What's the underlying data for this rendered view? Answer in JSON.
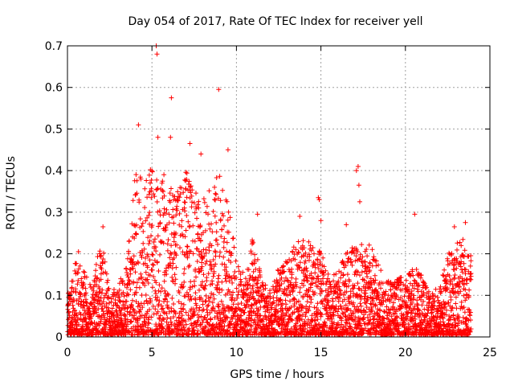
{
  "chart_data": {
    "type": "scatter",
    "title": "Day 054 of 2017, Rate Of TEC Index for receiver yell",
    "xlabel": "GPS time / hours",
    "ylabel": "ROTI / TECUs",
    "xlim": [
      0,
      25
    ],
    "ylim": [
      0,
      0.7
    ],
    "xticks": [
      0,
      5,
      10,
      15,
      20,
      25
    ],
    "xtick_labels": [
      "0",
      "5",
      "10",
      "15",
      "20",
      "25"
    ],
    "yticks": [
      0,
      0.1,
      0.2,
      0.3,
      0.4,
      0.5,
      0.6,
      0.7
    ],
    "ytick_labels": [
      "0",
      "0.1",
      "0.2",
      "0.3",
      "0.4",
      "0.5",
      "0.6",
      "0.7"
    ],
    "grid": true,
    "marker": "+",
    "color": "#ff0000",
    "outliers": [
      {
        "x": 5.25,
        "y": 0.7
      },
      {
        "x": 5.3,
        "y": 0.68
      },
      {
        "x": 6.15,
        "y": 0.575
      },
      {
        "x": 8.95,
        "y": 0.595
      },
      {
        "x": 4.2,
        "y": 0.51
      },
      {
        "x": 5.35,
        "y": 0.48
      },
      {
        "x": 6.1,
        "y": 0.48
      },
      {
        "x": 7.25,
        "y": 0.465
      },
      {
        "x": 9.5,
        "y": 0.45
      },
      {
        "x": 7.9,
        "y": 0.44
      },
      {
        "x": 17.2,
        "y": 0.41
      },
      {
        "x": 17.25,
        "y": 0.365
      },
      {
        "x": 17.3,
        "y": 0.325
      },
      {
        "x": 14.85,
        "y": 0.335
      },
      {
        "x": 14.9,
        "y": 0.33
      },
      {
        "x": 15.0,
        "y": 0.28
      },
      {
        "x": 16.5,
        "y": 0.27
      },
      {
        "x": 13.75,
        "y": 0.29
      },
      {
        "x": 20.55,
        "y": 0.295
      },
      {
        "x": 23.55,
        "y": 0.275
      },
      {
        "x": 22.9,
        "y": 0.265
      },
      {
        "x": 11.25,
        "y": 0.295
      },
      {
        "x": 2.1,
        "y": 0.265
      },
      {
        "x": 0.65,
        "y": 0.205
      },
      {
        "x": 17.1,
        "y": 0.4
      }
    ],
    "envelope": [
      {
        "x": 0.0,
        "y": 0.1
      },
      {
        "x": 0.5,
        "y": 0.18
      },
      {
        "x": 1.0,
        "y": 0.16
      },
      {
        "x": 1.5,
        "y": 0.12
      },
      {
        "x": 2.0,
        "y": 0.24
      },
      {
        "x": 2.5,
        "y": 0.1
      },
      {
        "x": 3.0,
        "y": 0.12
      },
      {
        "x": 3.5,
        "y": 0.17
      },
      {
        "x": 4.0,
        "y": 0.4
      },
      {
        "x": 4.5,
        "y": 0.38
      },
      {
        "x": 5.0,
        "y": 0.42
      },
      {
        "x": 5.5,
        "y": 0.4
      },
      {
        "x": 6.0,
        "y": 0.38
      },
      {
        "x": 6.5,
        "y": 0.36
      },
      {
        "x": 7.0,
        "y": 0.4
      },
      {
        "x": 7.5,
        "y": 0.35
      },
      {
        "x": 8.0,
        "y": 0.33
      },
      {
        "x": 8.5,
        "y": 0.36
      },
      {
        "x": 9.0,
        "y": 0.4
      },
      {
        "x": 9.5,
        "y": 0.33
      },
      {
        "x": 10.0,
        "y": 0.18
      },
      {
        "x": 10.5,
        "y": 0.14
      },
      {
        "x": 11.0,
        "y": 0.25
      },
      {
        "x": 11.5,
        "y": 0.13
      },
      {
        "x": 12.0,
        "y": 0.11
      },
      {
        "x": 12.5,
        "y": 0.16
      },
      {
        "x": 13.0,
        "y": 0.18
      },
      {
        "x": 13.5,
        "y": 0.22
      },
      {
        "x": 14.0,
        "y": 0.24
      },
      {
        "x": 14.5,
        "y": 0.22
      },
      {
        "x": 15.0,
        "y": 0.2
      },
      {
        "x": 15.5,
        "y": 0.14
      },
      {
        "x": 16.0,
        "y": 0.16
      },
      {
        "x": 16.5,
        "y": 0.2
      },
      {
        "x": 17.0,
        "y": 0.25
      },
      {
        "x": 17.5,
        "y": 0.23
      },
      {
        "x": 18.0,
        "y": 0.22
      },
      {
        "x": 18.5,
        "y": 0.16
      },
      {
        "x": 19.0,
        "y": 0.13
      },
      {
        "x": 19.5,
        "y": 0.15
      },
      {
        "x": 20.0,
        "y": 0.13
      },
      {
        "x": 20.5,
        "y": 0.19
      },
      {
        "x": 21.0,
        "y": 0.14
      },
      {
        "x": 21.5,
        "y": 0.1
      },
      {
        "x": 22.0,
        "y": 0.12
      },
      {
        "x": 22.5,
        "y": 0.2
      },
      {
        "x": 23.0,
        "y": 0.24
      },
      {
        "x": 23.5,
        "y": 0.23
      },
      {
        "x": 23.9,
        "y": 0.19
      }
    ],
    "sample_spacing_hours": 0.018
  }
}
